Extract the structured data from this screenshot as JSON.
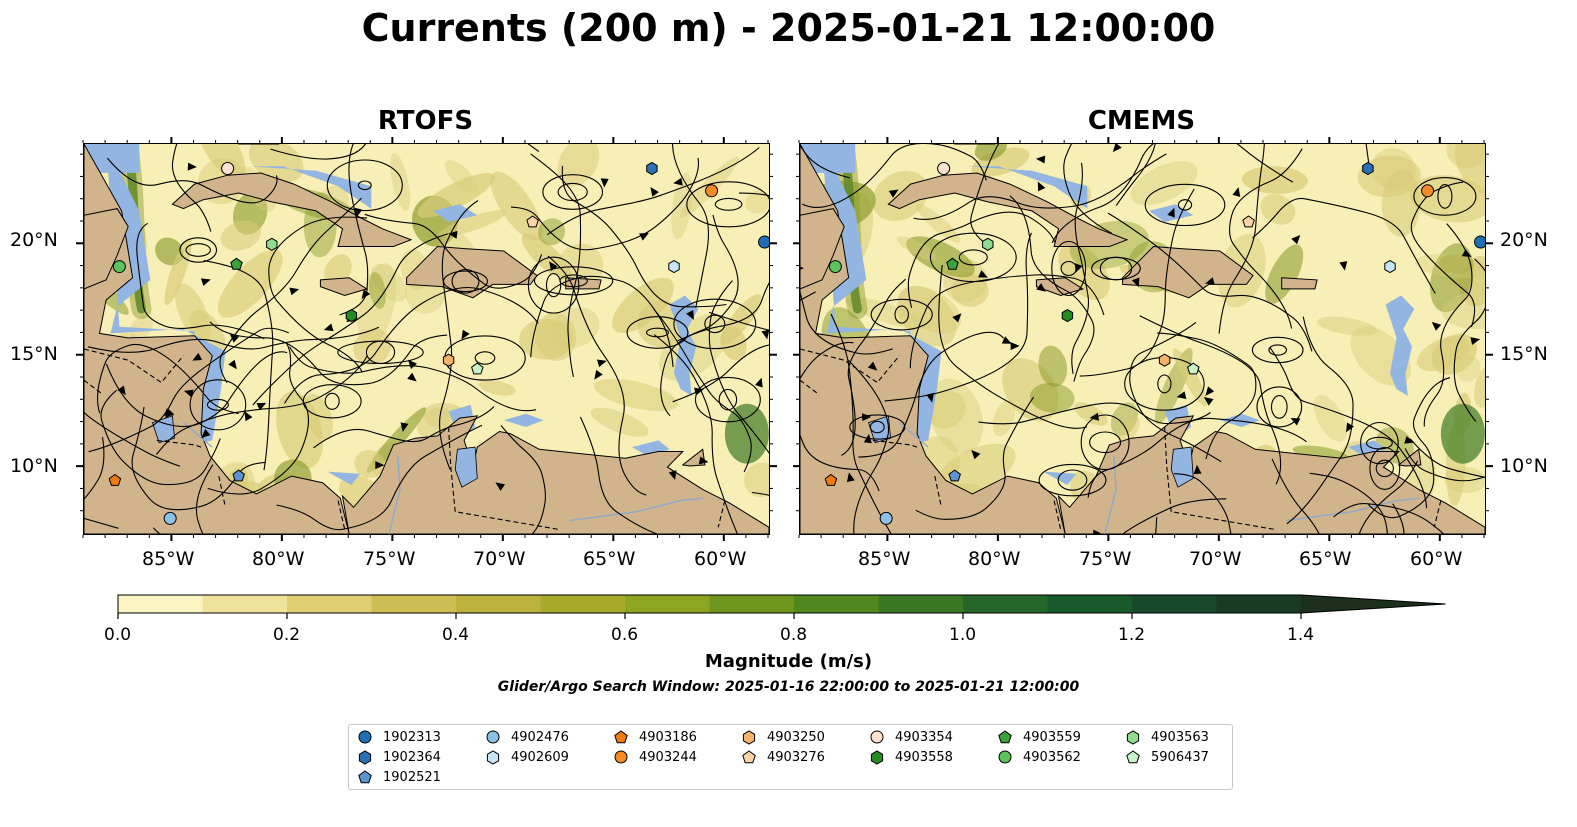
{
  "title": "Currents (200 m) - 2025-01-21 12:00:00",
  "panels": [
    {
      "title": "RTOFS"
    },
    {
      "title": "CMEMS"
    }
  ],
  "axes": {
    "lat_labels": [
      "20°N",
      "15°N",
      "10°N"
    ],
    "lon_labels": [
      "85°W",
      "80°W",
      "75°W",
      "70°W",
      "65°W",
      "60°W"
    ],
    "lon_range": [
      -89,
      -58
    ],
    "lat_range": [
      7,
      24.5
    ]
  },
  "colorbar": {
    "label": "Magnitude (m/s)",
    "ticks": [
      "0.0",
      "0.2",
      "0.4",
      "0.6",
      "0.8",
      "1.0",
      "1.2",
      "1.4"
    ],
    "colors": [
      "#fbf5c2",
      "#efe29a",
      "#e0cf72",
      "#cfbd55",
      "#bdb23e",
      "#a9a92c",
      "#8da520",
      "#6f961c",
      "#51871f",
      "#3a7724",
      "#25672a",
      "#195a2c",
      "#17492a",
      "#1a3b23",
      "#1c2e1c"
    ],
    "extend": "max"
  },
  "search_window": "Glider/Argo Search Window: 2025-01-16 22:00:00 to 2025-01-21 12:00:00",
  "map_colors": {
    "land": "#d1b48c",
    "ocean_shallow": "#93b5e1",
    "current_low": "#f7efb6",
    "current_mid": "#d8cb78",
    "current_high": "#8a9a2a",
    "current_max": "#3f7a23"
  },
  "legend": [
    {
      "id": "1902313",
      "marker": "circle",
      "color": "#1f6fb4"
    },
    {
      "id": "1902364",
      "marker": "hexagon",
      "color": "#2a72b8"
    },
    {
      "id": "1902521",
      "marker": "pentagon",
      "color": "#5b94cf"
    },
    {
      "id": "4902476",
      "marker": "circle",
      "color": "#8cc1e8"
    },
    {
      "id": "4902609",
      "marker": "hexagon",
      "color": "#c9e4f7"
    },
    {
      "id": "4903186",
      "marker": "pentagon",
      "color": "#f07a12"
    },
    {
      "id": "4903244",
      "marker": "circle",
      "color": "#f58a2a"
    },
    {
      "id": "4903250",
      "marker": "hexagon",
      "color": "#f6b26b"
    },
    {
      "id": "4903276",
      "marker": "pentagon",
      "color": "#fbd3a6"
    },
    {
      "id": "4903354",
      "marker": "circle",
      "color": "#fde3cf"
    },
    {
      "id": "4903558",
      "marker": "hexagon",
      "color": "#228b22"
    },
    {
      "id": "4903559",
      "marker": "pentagon",
      "color": "#3aa23a"
    },
    {
      "id": "4903562",
      "marker": "circle",
      "color": "#5cc25c"
    },
    {
      "id": "4903563",
      "marker": "hexagon",
      "color": "#8fdb8f"
    },
    {
      "id": "5906437",
      "marker": "pentagon",
      "color": "#c9f2c9"
    }
  ]
}
